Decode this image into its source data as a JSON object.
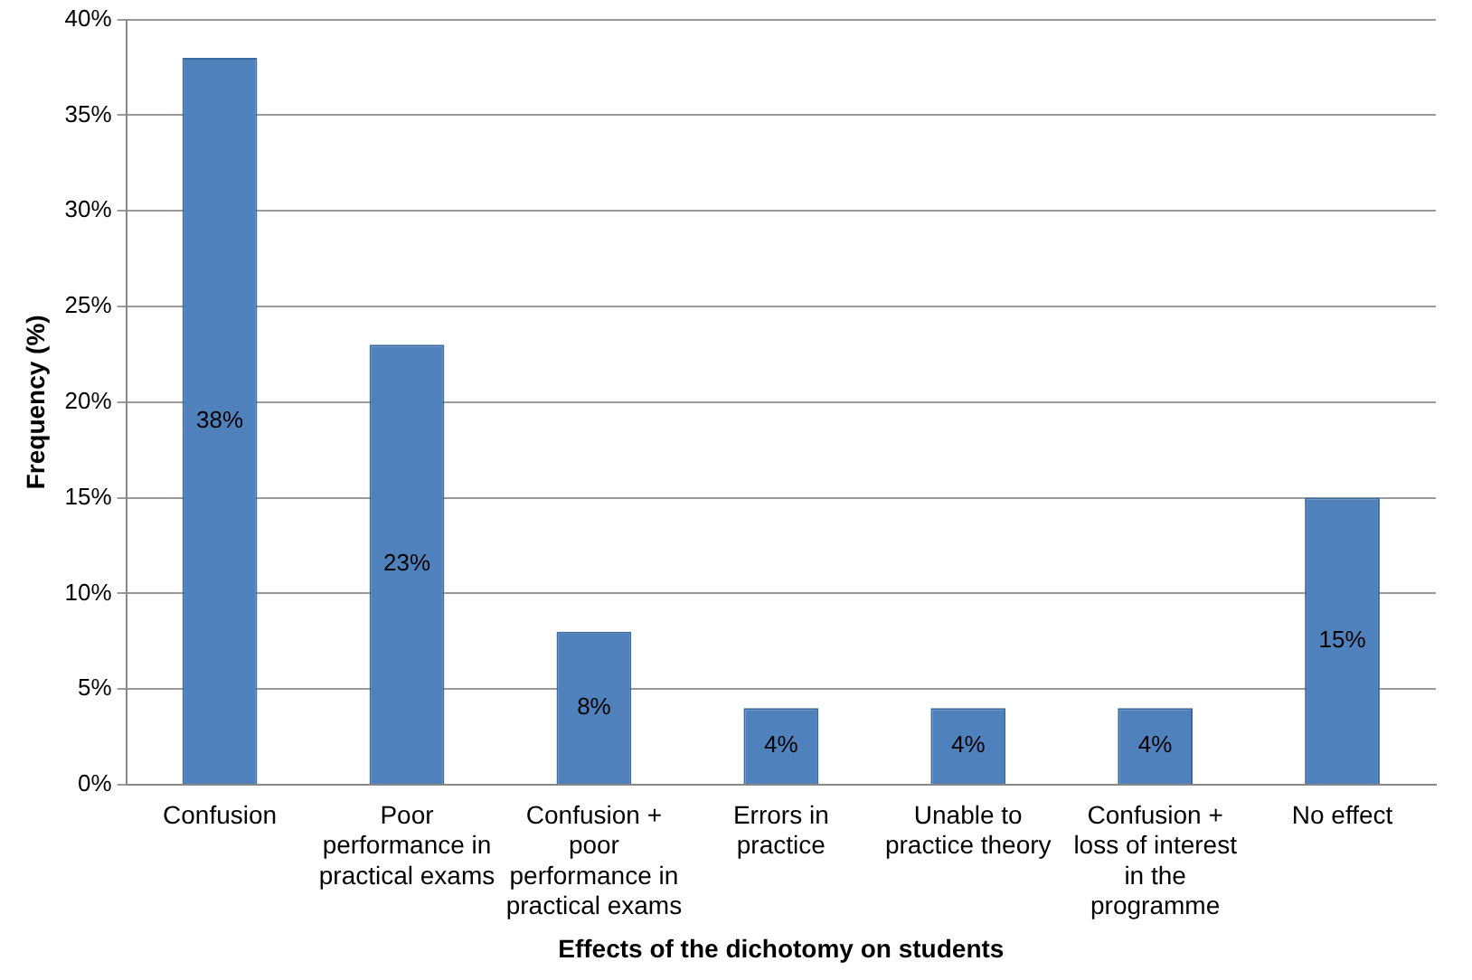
{
  "chart_data": {
    "type": "bar",
    "xlabel": "Effects of the dichotomy on students",
    "ylabel": "Frequency (%)",
    "categories": [
      "Confusion",
      "Poor performance in practical exams",
      "Confusion + poor performance in practical exams",
      "Errors in practice",
      "Unable to practice theory",
      "Confusion + loss of interest in the programme",
      "No effect"
    ],
    "values": [
      38,
      23,
      8,
      4,
      4,
      4,
      15
    ],
    "value_labels": [
      "38%",
      "23%",
      "8%",
      "4%",
      "4%",
      "4%",
      "15%"
    ],
    "color": "#4f81bd",
    "ylim": [
      0,
      40
    ],
    "yticks": [
      {
        "value": 0,
        "label": "0%"
      },
      {
        "value": 5,
        "label": "5%"
      },
      {
        "value": 10,
        "label": "10%"
      },
      {
        "value": 15,
        "label": "15%"
      },
      {
        "value": 20,
        "label": "20%"
      },
      {
        "value": 25,
        "label": "25%"
      },
      {
        "value": 30,
        "label": "30%"
      },
      {
        "value": 35,
        "label": "35%"
      },
      {
        "value": 40,
        "label": "40%"
      }
    ],
    "grid": "y",
    "legend": false
  }
}
